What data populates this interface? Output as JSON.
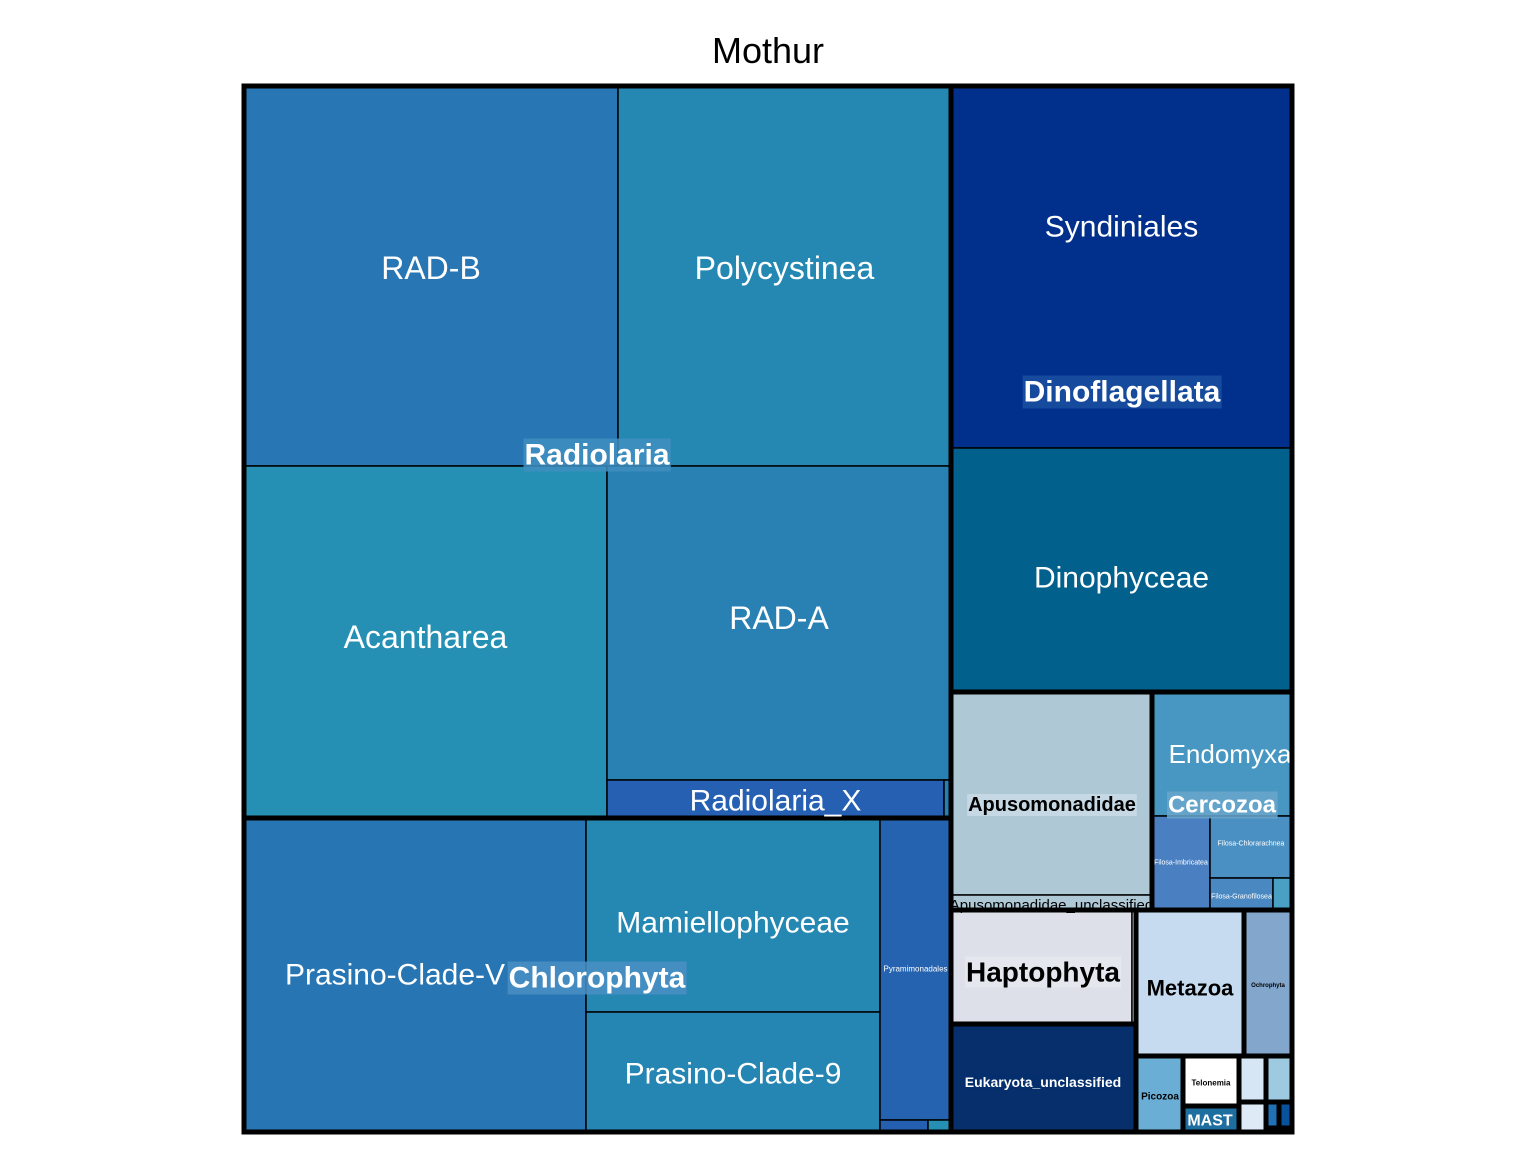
{
  "chart_data": {
    "type": "treemap",
    "title": "Mothur",
    "groups": [
      {
        "name": "Radiolaria",
        "label_bg": "#3f8fbf",
        "subgroups": [
          {
            "name": "RAD-B",
            "color": "#2876b3"
          },
          {
            "name": "Polycystinea",
            "color": "#2588b3"
          },
          {
            "name": "Acantharea",
            "color": "#2590b3"
          },
          {
            "name": "RAD-A",
            "color": "#2880b3"
          },
          {
            "name": "Radiolaria_X",
            "color": "#2560b3"
          },
          {
            "name": "",
            "color": "#2580b3"
          }
        ]
      },
      {
        "name": "Dinoflagellata",
        "label_bg": "#1a4fa0",
        "subgroups": [
          {
            "name": "Syndiniales",
            "color": "#01308c"
          },
          {
            "name": "Dinophyceae",
            "color": "#02608c"
          }
        ]
      },
      {
        "name": "Chlorophyta",
        "label_bg": "#4a8fc4",
        "subgroups": [
          {
            "name": "Prasino-Clade-V",
            "color": "#2776b3"
          },
          {
            "name": "Mamiellophyceae",
            "color": "#2588b3"
          },
          {
            "name": "Prasino-Clade-9",
            "color": "#2585b3"
          },
          {
            "name": "Pyramimonadales",
            "color": "#2563b0"
          },
          {
            "name": "",
            "color": "#2560b0"
          },
          {
            "name": "",
            "color": "#2590b3"
          }
        ]
      },
      {
        "name": "Apusomonadidae",
        "label_bg": "#c9dbe5",
        "subgroups": [
          {
            "name": "",
            "color": "#aec8d6"
          },
          {
            "name": "Apusomonadidae_unclassified",
            "color": "#aec8d6"
          }
        ]
      },
      {
        "name": "Cercozoa",
        "label_bg": "#6aa6cc",
        "subgroups": [
          {
            "name": "Endomyxa",
            "color": "#4797c2"
          },
          {
            "name": "Filosa-Imbricatea",
            "color": "#4a80c2"
          },
          {
            "name": "Filosa-Chlorarachnea",
            "color": "#4a90c2"
          },
          {
            "name": "Filosa-Granofilosea",
            "color": "#4a88c2"
          },
          {
            "name": "",
            "color": "#4aa0c2"
          }
        ]
      },
      {
        "name": "Haptophyta",
        "label_bg": "#e5e8ee",
        "subgroups": [
          {
            "name": "",
            "color": "#dde0e8"
          },
          {
            "name": "",
            "color": "#dde0e8"
          }
        ]
      },
      {
        "name": "Metazoa",
        "label_bg": "#c6daf0",
        "subgroups": [
          {
            "name": "",
            "color": "#c6daf0"
          }
        ]
      },
      {
        "name": "Ochrophyta",
        "label_bg": "#82a6cc",
        "subgroups": [
          {
            "name": "",
            "color": "#82a6cc"
          }
        ]
      },
      {
        "name": "Eukaryota_unclassified",
        "label_bg": "#062f6c",
        "subgroups": [
          {
            "name": "",
            "color": "#062f6c"
          }
        ]
      },
      {
        "name": "Picozoa",
        "label_bg": "#6aaed6",
        "subgroups": [
          {
            "name": "",
            "color": "#6aaed6"
          }
        ]
      },
      {
        "name": "Telonemia",
        "label_bg": "#ffffff",
        "subgroups": [
          {
            "name": "",
            "color": "#ffffff"
          }
        ]
      },
      {
        "name": "MAST",
        "label_bg": "#1e6fa0",
        "subgroups": [
          {
            "name": "",
            "color": "#1e6fa0"
          }
        ]
      },
      {
        "name": "",
        "subgroups": [
          {
            "name": "",
            "color": "#d6e6f4"
          }
        ]
      },
      {
        "name": "",
        "subgroups": [
          {
            "name": "",
            "color": "#9ecae1"
          }
        ]
      },
      {
        "name": "",
        "subgroups": [
          {
            "name": "",
            "color": "#deebf7"
          }
        ]
      },
      {
        "name": "",
        "subgroups": [
          {
            "name": "",
            "color": "#2171b5"
          }
        ]
      },
      {
        "name": "",
        "subgroups": [
          {
            "name": "",
            "color": "#08519c"
          }
        ]
      },
      {
        "name": "",
        "subgroups": [
          {
            "name": "",
            "color": "#ffffff"
          }
        ]
      }
    ]
  }
}
